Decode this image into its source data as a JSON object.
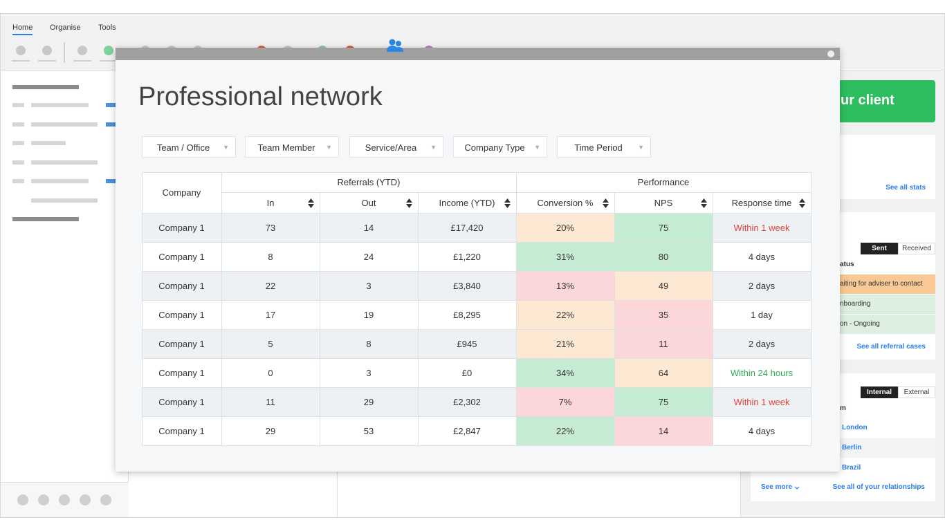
{
  "toolbar": {
    "tabs": [
      "Home",
      "Organise",
      "Tools"
    ]
  },
  "modal": {
    "title": "Professional network",
    "filters": [
      "Team / Office",
      "Team Member",
      "Service/Area",
      "Company Type",
      "Time Period"
    ],
    "table": {
      "company_header": "Company",
      "groups": [
        "Referrals (YTD)",
        "Performance"
      ],
      "columns": [
        "In",
        "Out",
        "Income (YTD)",
        "Conversion %",
        "NPS",
        "Response time"
      ],
      "rows": [
        [
          "Company 1",
          "73",
          "14",
          "£17,420",
          "20%",
          "75",
          "Within 1 week"
        ],
        [
          "Company 1",
          "8",
          "24",
          "£1,220",
          "31%",
          "80",
          "4 days"
        ],
        [
          "Company 1",
          "22",
          "3",
          "£3,840",
          "13%",
          "49",
          "2 days"
        ],
        [
          "Company 1",
          "17",
          "19",
          "£8,295",
          "22%",
          "35",
          "1 day"
        ],
        [
          "Company 1",
          "5",
          "8",
          "£945",
          "21%",
          "11",
          "2 days"
        ],
        [
          "Company 1",
          "0",
          "3",
          "£0",
          "34%",
          "64",
          "Within 24 hours"
        ],
        [
          "Company 1",
          "11",
          "29",
          "£2,302",
          "7%",
          "75",
          "Within 1 week"
        ],
        [
          "Company 1",
          "29",
          "53",
          "£2,847",
          "22%",
          "14",
          "4 days"
        ]
      ],
      "colors": [
        [
          "#fde9d3",
          "#c6ebd3",
          "#e0453c"
        ],
        [
          "#c6ebd3",
          "#c6ebd3",
          "#333333"
        ],
        [
          "#fcd7da",
          "#fde9d3",
          "#333333"
        ],
        [
          "#fde9d3",
          "#fcd7da",
          "#333333"
        ],
        [
          "#fde9d3",
          "#fcd7da",
          "#333333"
        ],
        [
          "#c6ebd3",
          "#fde9d3",
          "#2eaa55"
        ],
        [
          "#fcd7da",
          "#c6ebd3",
          "#e0453c"
        ],
        [
          "#c6ebd3",
          "#fcd7da",
          "#333333"
        ]
      ]
    }
  },
  "background": {
    "cta": "ur client",
    "stats_link": "See all stats",
    "referrals": {
      "tabs": [
        "Sent",
        "Received"
      ],
      "header": "atus",
      "rows": [
        "aiting for adviser to contact",
        "nboarding",
        "on - Ongoing"
      ],
      "link": "See all referral cases"
    },
    "relationships": {
      "tabs": [
        "Internal",
        "External"
      ],
      "header": "m",
      "rows": [
        "London",
        "Berlin",
        "Brazil"
      ],
      "more": "See more",
      "link": "See all of your relationships"
    }
  }
}
